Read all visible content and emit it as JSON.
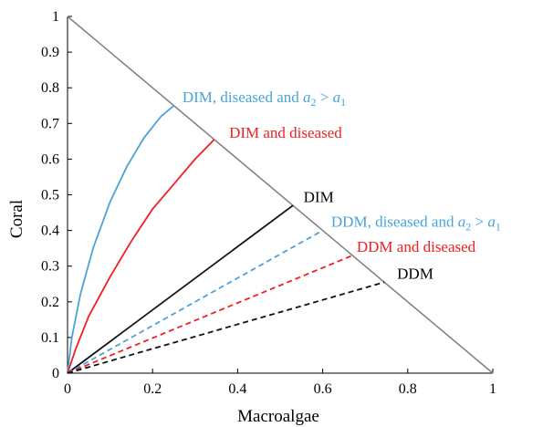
{
  "chart_data": {
    "type": "line",
    "title": "",
    "xlabel": "Macroalgae",
    "ylabel": "Coral",
    "xlim": [
      0,
      1
    ],
    "ylim": [
      0,
      1
    ],
    "grid": false,
    "legend": "none",
    "x_ticks": [
      "0",
      "0.2",
      "0.4",
      "0.6",
      "0.8",
      "1"
    ],
    "y_ticks": [
      "0",
      "0.1",
      "0.2",
      "0.3",
      "0.4",
      "0.5",
      "0.6",
      "0.7",
      "0.8",
      "0.9",
      "1"
    ],
    "boundary": {
      "color": "#7f7f7f",
      "x": [
        0,
        1
      ],
      "y": [
        1,
        0
      ]
    },
    "series": [
      {
        "color": "#4aa3d8",
        "style": "solid",
        "x": [
          0,
          0.01,
          0.03,
          0.06,
          0.1,
          0.14,
          0.18,
          0.22,
          0.25
        ],
        "y": [
          0,
          0.1,
          0.22,
          0.35,
          0.48,
          0.58,
          0.66,
          0.72,
          0.75
        ]
      },
      {
        "color": "#ee2020",
        "style": "solid",
        "x": [
          0,
          0.02,
          0.05,
          0.1,
          0.15,
          0.2,
          0.25,
          0.3,
          0.345
        ],
        "y": [
          0,
          0.07,
          0.16,
          0.27,
          0.37,
          0.46,
          0.53,
          0.6,
          0.655
        ]
      },
      {
        "color": "#111111",
        "style": "solid",
        "x": [
          0,
          0.53
        ],
        "y": [
          0,
          0.47
        ]
      },
      {
        "color": "#4aa3d8",
        "style": "dashed",
        "x": [
          0,
          0.6
        ],
        "y": [
          0,
          0.4
        ]
      },
      {
        "color": "#ee2020",
        "style": "dashed",
        "x": [
          0,
          0.67
        ],
        "y": [
          0,
          0.33
        ]
      },
      {
        "color": "#111111",
        "style": "dashed",
        "x": [
          0,
          0.745
        ],
        "y": [
          0,
          0.255
        ]
      }
    ],
    "annotations": [
      {
        "color": "#4aa3d8",
        "x": 0.27,
        "y": 0.76,
        "main": "DIM, diseased and ",
        "var1": "a",
        "sub1": "2",
        "op": " > ",
        "var2": "a",
        "sub2": "1"
      },
      {
        "color": "#ee2020",
        "x": 0.38,
        "y": 0.66,
        "main": "DIM and diseased"
      },
      {
        "color": "#000000",
        "x": 0.555,
        "y": 0.48,
        "main": "DIM"
      },
      {
        "color": "#4aa3d8",
        "x": 0.62,
        "y": 0.41,
        "main": "DDM, diseased and ",
        "var1": "a",
        "sub1": "2",
        "op": " > ",
        "var2": "a",
        "sub2": "1"
      },
      {
        "color": "#ee2020",
        "x": 0.68,
        "y": 0.34,
        "main": "DDM and diseased"
      },
      {
        "color": "#000000",
        "x": 0.775,
        "y": 0.265,
        "main": "DDM"
      }
    ]
  }
}
